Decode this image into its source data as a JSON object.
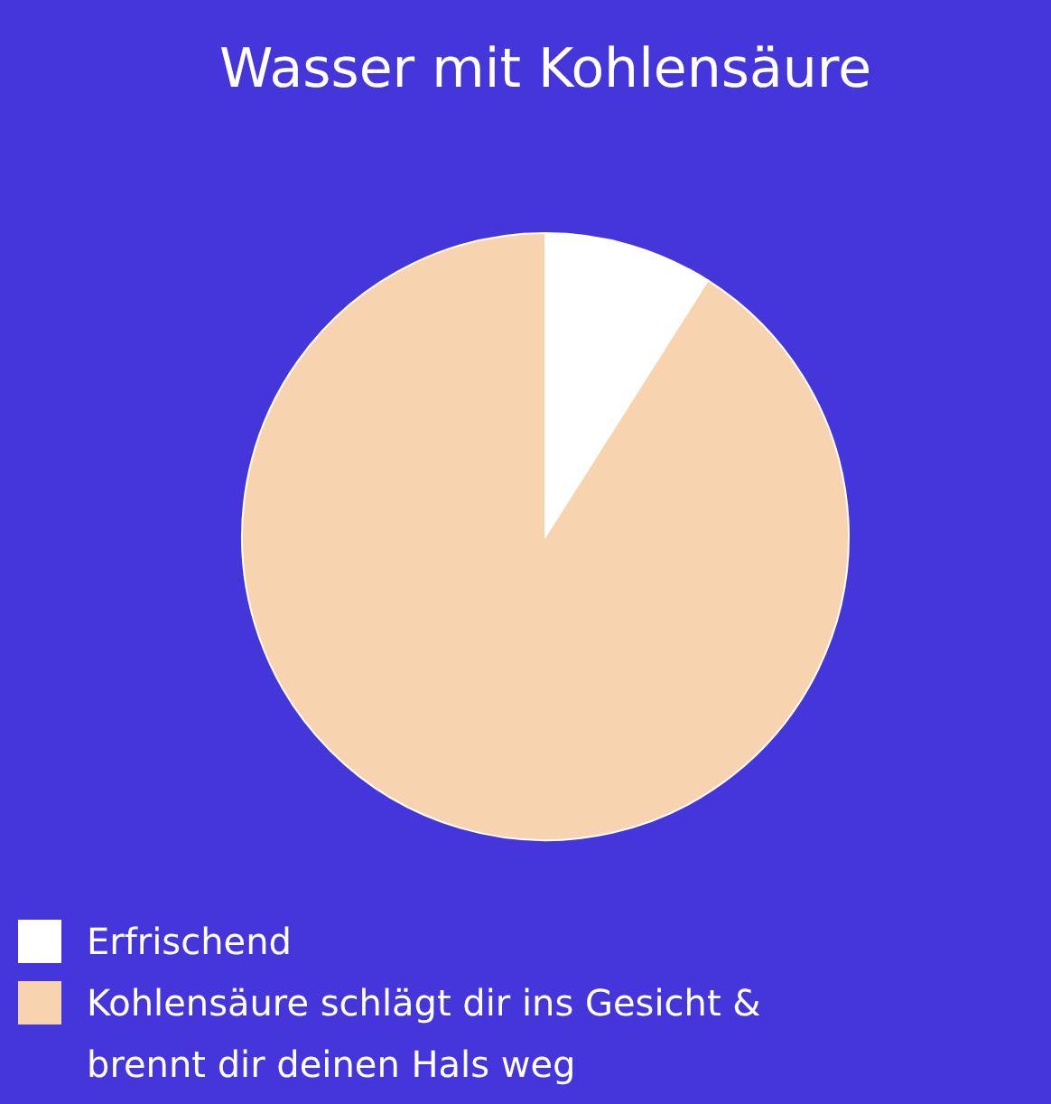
{
  "chart_data": {
    "type": "pie",
    "title": "Wasser mit Kohlensäure",
    "categories": [
      "Erfrischend",
      "Kohlensäure schlägt dir ins Gesicht & brennt dir deinen Hals weg"
    ],
    "values": [
      9,
      91
    ],
    "colors": [
      "#ffffff",
      "#f7d3b0"
    ],
    "legend": "bottom"
  }
}
